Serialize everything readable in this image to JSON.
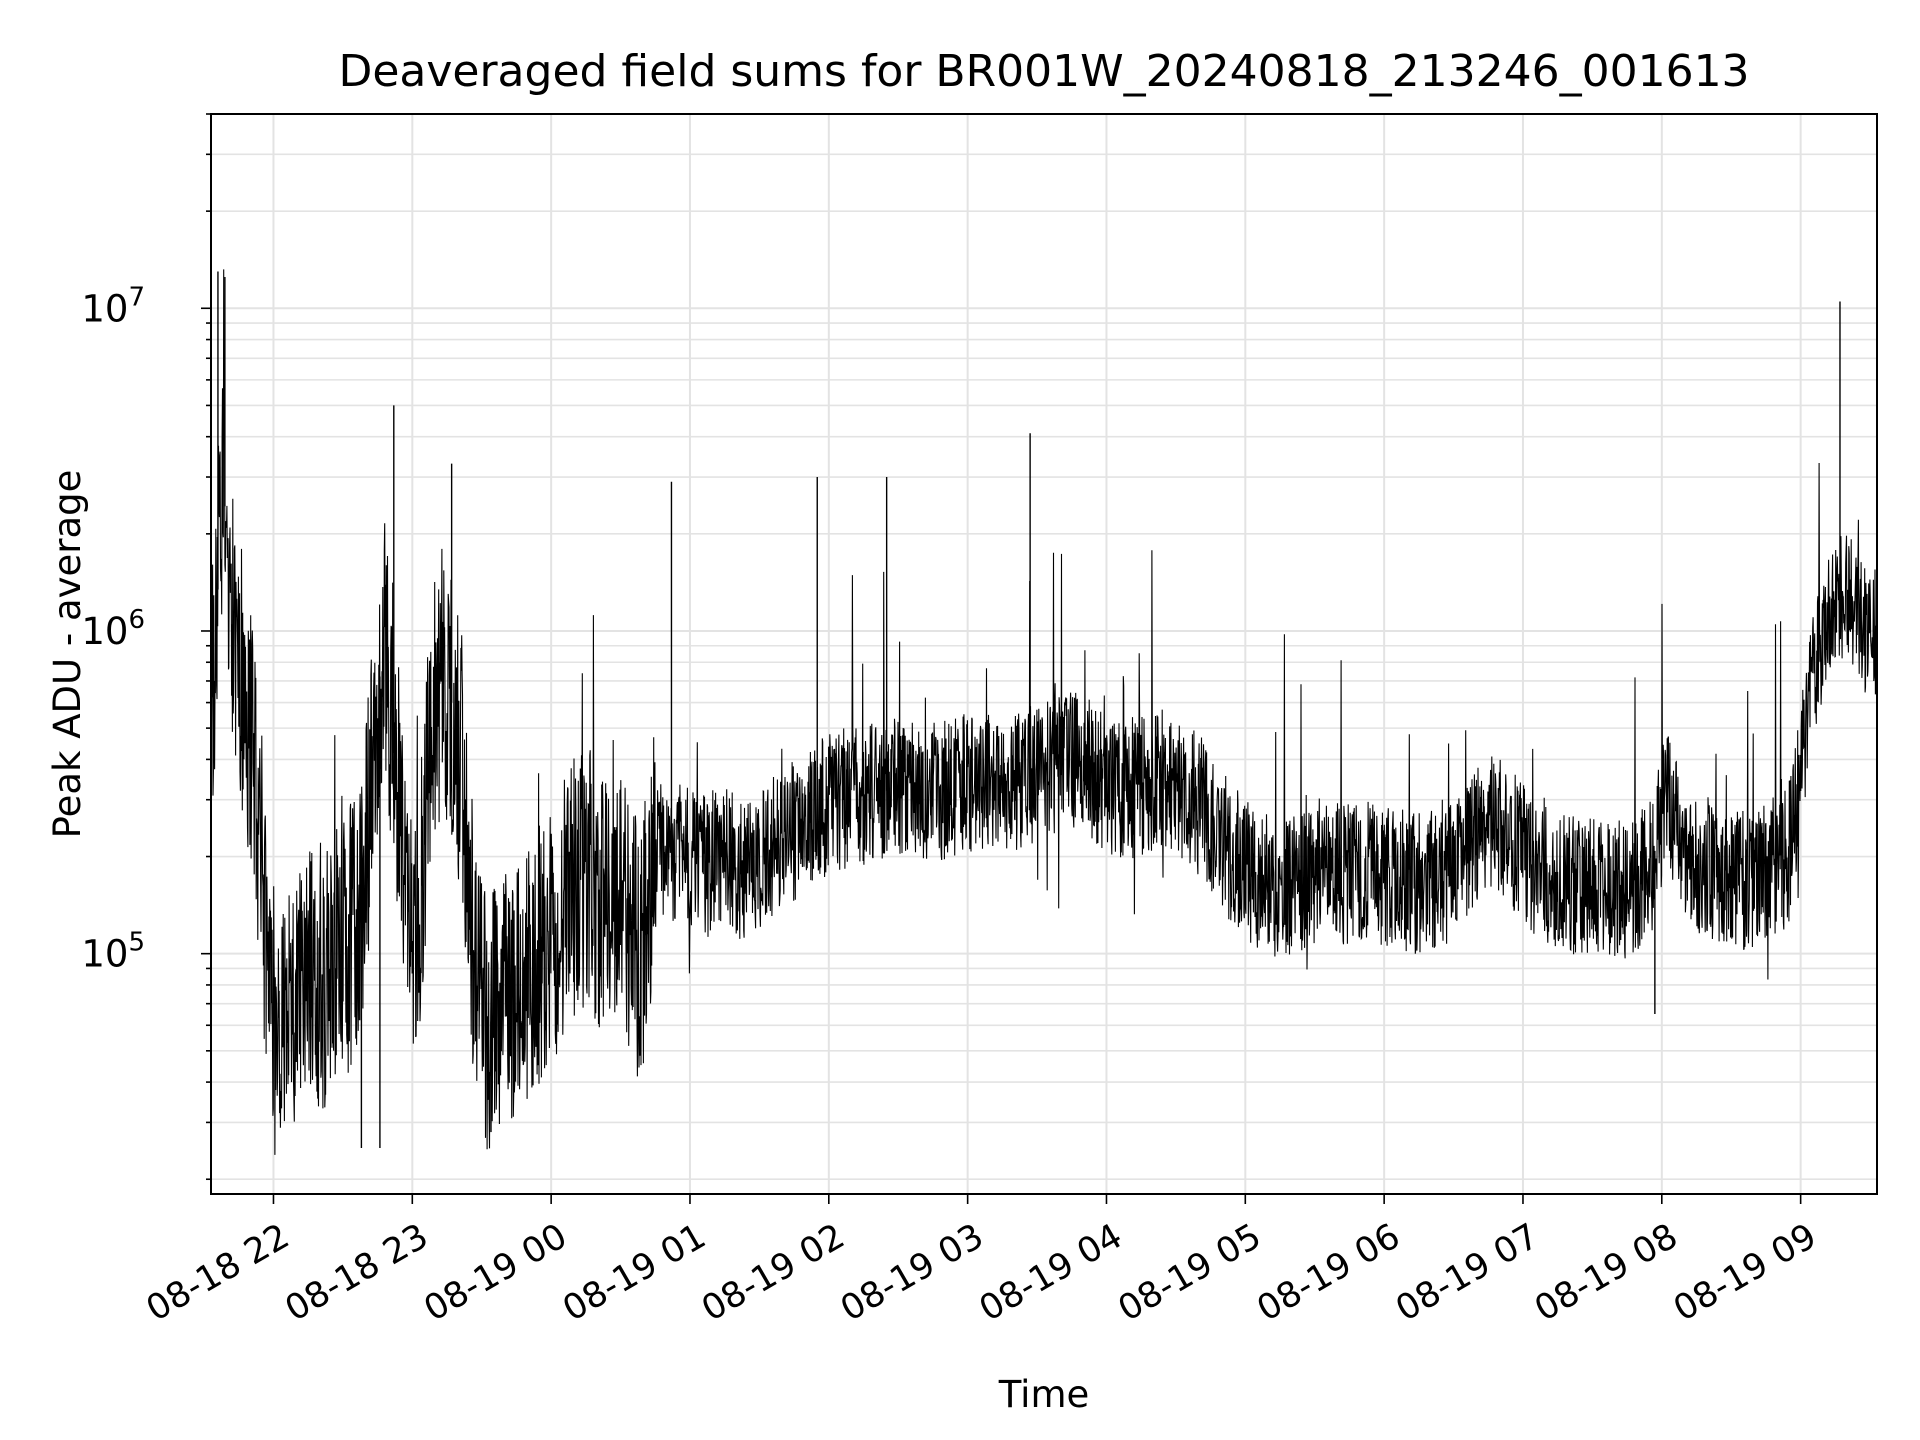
{
  "chart_data": {
    "type": "line",
    "title": "Deaveraged field sums for BR001W_20240818_213246_001613",
    "xlabel": "Time",
    "ylabel": "Peak ADU - average",
    "yscale": "log",
    "grid": true,
    "legend": "none",
    "ylim": [
      18000,
      40000000
    ],
    "xlim": [
      "2024-08-18 21:33",
      "2024-08-19 09:33"
    ],
    "xticks": [
      {
        "value": "2024-08-18 22:00",
        "label": "08-18 22"
      },
      {
        "value": "2024-08-18 23:00",
        "label": "08-18 23"
      },
      {
        "value": "2024-08-19 00:00",
        "label": "08-19 00"
      },
      {
        "value": "2024-08-19 01:00",
        "label": "08-19 01"
      },
      {
        "value": "2024-08-19 02:00",
        "label": "08-19 02"
      },
      {
        "value": "2024-08-19 03:00",
        "label": "08-19 03"
      },
      {
        "value": "2024-08-19 04:00",
        "label": "08-19 04"
      },
      {
        "value": "2024-08-19 05:00",
        "label": "08-19 05"
      },
      {
        "value": "2024-08-19 06:00",
        "label": "08-19 06"
      },
      {
        "value": "2024-08-19 07:00",
        "label": "08-19 07"
      },
      {
        "value": "2024-08-19 08:00",
        "label": "08-19 08"
      },
      {
        "value": "2024-08-19 09:00",
        "label": "08-19 09"
      }
    ],
    "yticks": [
      {
        "value": 100000,
        "base": "10",
        "exp": "5"
      },
      {
        "value": 1000000,
        "base": "10",
        "exp": "6"
      },
      {
        "value": 10000000,
        "base": "10",
        "exp": "7"
      }
    ],
    "series": [
      {
        "color": "#000000",
        "points": [
          [
            "2024-08-18 21:33",
            600000
          ],
          [
            "2024-08-18 21:35",
            900000
          ],
          [
            "2024-08-18 21:38",
            3000000
          ],
          [
            "2024-08-18 21:42",
            1300000
          ],
          [
            "2024-08-18 21:46",
            700000
          ],
          [
            "2024-08-18 21:50",
            450000
          ],
          [
            "2024-08-18 21:54",
            250000
          ],
          [
            "2024-08-18 21:58",
            80000
          ],
          [
            "2024-08-18 22:02",
            50000
          ],
          [
            "2024-08-18 22:08",
            70000
          ],
          [
            "2024-08-18 22:15",
            90000
          ],
          [
            "2024-08-18 22:22",
            85000
          ],
          [
            "2024-08-18 22:30",
            100000
          ],
          [
            "2024-08-18 22:37",
            130000
          ],
          [
            "2024-08-18 22:42",
            300000
          ],
          [
            "2024-08-18 22:47",
            900000
          ],
          [
            "2024-08-18 22:50",
            700000
          ],
          [
            "2024-08-18 22:54",
            250000
          ],
          [
            "2024-08-18 22:58",
            120000
          ],
          [
            "2024-08-18 23:02",
            90000
          ],
          [
            "2024-08-18 23:07",
            400000
          ],
          [
            "2024-08-18 23:12",
            700000
          ],
          [
            "2024-08-18 23:17",
            600000
          ],
          [
            "2024-08-18 23:22",
            350000
          ],
          [
            "2024-08-18 23:27",
            90000
          ],
          [
            "2024-08-18 23:32",
            60000
          ],
          [
            "2024-08-18 23:38",
            65000
          ],
          [
            "2024-08-18 23:45",
            80000
          ],
          [
            "2024-08-18 23:52",
            90000
          ],
          [
            "2024-08-19 00:00",
            110000
          ],
          [
            "2024-08-19 00:08",
            160000
          ],
          [
            "2024-08-19 00:15",
            180000
          ],
          [
            "2024-08-19 00:22",
            140000
          ],
          [
            "2024-08-19 00:30",
            150000
          ],
          [
            "2024-08-19 00:38",
            100000
          ],
          [
            "2024-08-19 00:45",
            200000
          ],
          [
            "2024-08-19 00:55",
            210000
          ],
          [
            "2024-08-19 01:05",
            190000
          ],
          [
            "2024-08-19 01:15",
            200000
          ],
          [
            "2024-08-19 01:25",
            180000
          ],
          [
            "2024-08-19 01:35",
            210000
          ],
          [
            "2024-08-19 01:45",
            240000
          ],
          [
            "2024-08-19 01:55",
            280000
          ],
          [
            "2024-08-19 02:05",
            300000
          ],
          [
            "2024-08-19 02:15",
            310000
          ],
          [
            "2024-08-19 02:25",
            320000
          ],
          [
            "2024-08-19 02:35",
            330000
          ],
          [
            "2024-08-19 02:45",
            320000
          ],
          [
            "2024-08-19 02:55",
            330000
          ],
          [
            "2024-08-19 03:05",
            340000
          ],
          [
            "2024-08-19 03:15",
            330000
          ],
          [
            "2024-08-19 03:25",
            350000
          ],
          [
            "2024-08-19 03:35",
            380000
          ],
          [
            "2024-08-19 03:45",
            400000
          ],
          [
            "2024-08-19 03:55",
            360000
          ],
          [
            "2024-08-19 04:05",
            320000
          ],
          [
            "2024-08-19 04:15",
            330000
          ],
          [
            "2024-08-19 04:25",
            350000
          ],
          [
            "2024-08-19 04:35",
            320000
          ],
          [
            "2024-08-19 04:45",
            260000
          ],
          [
            "2024-08-19 04:55",
            200000
          ],
          [
            "2024-08-19 05:05",
            170000
          ],
          [
            "2024-08-19 05:15",
            160000
          ],
          [
            "2024-08-19 05:25",
            170000
          ],
          [
            "2024-08-19 05:35",
            180000
          ],
          [
            "2024-08-19 05:45",
            175000
          ],
          [
            "2024-08-19 05:55",
            180000
          ],
          [
            "2024-08-19 06:05",
            170000
          ],
          [
            "2024-08-19 06:15",
            165000
          ],
          [
            "2024-08-19 06:25",
            170000
          ],
          [
            "2024-08-19 06:35",
            200000
          ],
          [
            "2024-08-19 06:45",
            260000
          ],
          [
            "2024-08-19 06:55",
            230000
          ],
          [
            "2024-08-19 07:05",
            190000
          ],
          [
            "2024-08-19 07:15",
            170000
          ],
          [
            "2024-08-19 07:25",
            160000
          ],
          [
            "2024-08-19 07:35",
            165000
          ],
          [
            "2024-08-19 07:45",
            160000
          ],
          [
            "2024-08-19 07:55",
            180000
          ],
          [
            "2024-08-19 08:02",
            300000
          ],
          [
            "2024-08-19 08:08",
            220000
          ],
          [
            "2024-08-19 08:15",
            190000
          ],
          [
            "2024-08-19 08:25",
            180000
          ],
          [
            "2024-08-19 08:35",
            170000
          ],
          [
            "2024-08-19 08:45",
            180000
          ],
          [
            "2024-08-19 08:55",
            200000
          ],
          [
            "2024-08-19 09:00",
            350000
          ],
          [
            "2024-08-19 09:05",
            700000
          ],
          [
            "2024-08-19 09:10",
            1000000
          ],
          [
            "2024-08-19 09:15",
            1200000
          ],
          [
            "2024-08-19 09:20",
            1300000
          ],
          [
            "2024-08-19 09:25",
            1100000
          ],
          [
            "2024-08-19 09:30",
            950000
          ],
          [
            "2024-08-19 09:33",
            1000000
          ]
        ]
      }
    ],
    "spikes": [
      [
        "2024-08-18 21:36",
        13000000
      ],
      [
        "2024-08-18 21:39",
        12500000
      ],
      [
        "2024-08-18 22:52",
        5000000
      ],
      [
        "2024-08-18 23:17",
        3300000
      ],
      [
        "2024-08-19 00:52",
        2900000
      ],
      [
        "2024-08-19 01:55",
        3000000
      ],
      [
        "2024-08-19 02:25",
        3000000
      ],
      [
        "2024-08-19 03:27",
        4100000
      ],
      [
        "2024-08-19 09:17",
        10500000
      ],
      [
        "2024-08-18 22:46",
        25000
      ],
      [
        "2024-08-18 22:38",
        25000
      ],
      [
        "2024-08-18 23:34",
        28000
      ],
      [
        "2024-08-19 07:57",
        65000
      ]
    ]
  }
}
